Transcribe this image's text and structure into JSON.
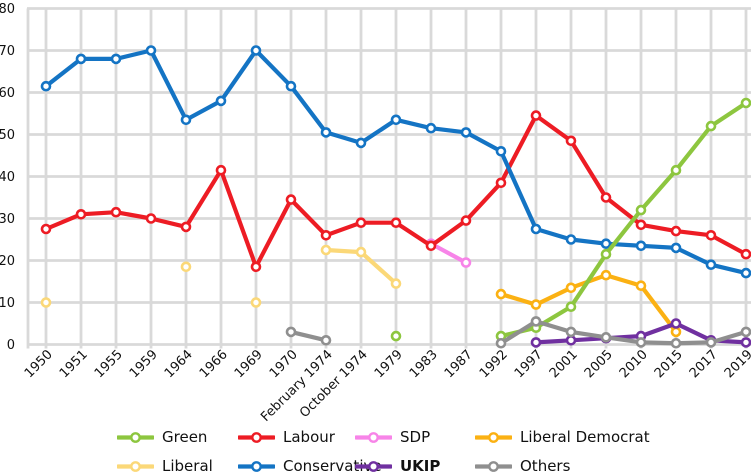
{
  "chart_data": {
    "type": "line",
    "title": "",
    "xlabel": "",
    "ylabel": "",
    "ylim": [
      0,
      80
    ],
    "yticks": [
      0,
      10,
      20,
      30,
      40,
      50,
      60,
      70,
      80
    ],
    "grid": true,
    "legend_position": "bottom",
    "x_categories": [
      "1950",
      "1951",
      "1955",
      "1959",
      "1964",
      "1966",
      "1969",
      "1970",
      "February 1974",
      "October 1974",
      "1979",
      "1983",
      "1987",
      "1992",
      "1997",
      "2001",
      "2005",
      "2010",
      "2015",
      "2017",
      "2019"
    ],
    "series": [
      {
        "name": "Green",
        "color": "#8DC63F",
        "values": [
          null,
          null,
          null,
          null,
          null,
          null,
          null,
          null,
          null,
          null,
          2,
          null,
          null,
          2,
          4,
          9,
          21.5,
          32,
          41.5,
          52,
          57.5
        ]
      },
      {
        "name": "Labour",
        "color": "#ED1C24",
        "values": [
          27.5,
          31,
          31.5,
          30,
          28,
          41.5,
          18.5,
          34.5,
          26,
          29,
          29,
          23.5,
          29.5,
          38.5,
          54.5,
          48.5,
          35,
          28.5,
          27,
          26,
          21.5
        ]
      },
      {
        "name": "SDP",
        "color": "#F784E8",
        "values": [
          null,
          null,
          null,
          null,
          null,
          null,
          null,
          null,
          null,
          null,
          null,
          24,
          19.5,
          null,
          null,
          null,
          null,
          null,
          null,
          null,
          null
        ]
      },
      {
        "name": "Liberal Democrat",
        "color": "#FBB113",
        "values": [
          null,
          null,
          null,
          null,
          null,
          null,
          null,
          null,
          null,
          null,
          null,
          null,
          null,
          12,
          9.5,
          13.5,
          16.5,
          14,
          3,
          null,
          null
        ]
      },
      {
        "name": "Liberal",
        "color": "#FBD878",
        "values": [
          10,
          null,
          null,
          null,
          18.5,
          null,
          10,
          null,
          22.5,
          22,
          14.5,
          null,
          null,
          null,
          null,
          null,
          null,
          null,
          null,
          null,
          null
        ]
      },
      {
        "name": "Conservative",
        "color": "#1474C4",
        "values": [
          61.5,
          68,
          68,
          70,
          53.5,
          58,
          70,
          61.5,
          50.5,
          48,
          53.5,
          51.5,
          50.5,
          46,
          27.5,
          25,
          24,
          23.5,
          23,
          19,
          17
        ]
      },
      {
        "name": "UKIP",
        "color": "#7030A0",
        "bold": true,
        "values": [
          null,
          null,
          null,
          null,
          null,
          null,
          null,
          null,
          null,
          null,
          null,
          null,
          null,
          null,
          0.5,
          1,
          1.5,
          2,
          5,
          1,
          0.5
        ]
      },
      {
        "name": "Others",
        "color": "#8F8F8F",
        "values": [
          null,
          null,
          null,
          null,
          null,
          null,
          null,
          3,
          1,
          null,
          null,
          null,
          null,
          0.3,
          5.5,
          3,
          1.7,
          0.5,
          0.3,
          0.5,
          3
        ]
      }
    ],
    "draw_order": [
      "SDP",
      "Liberal",
      "Liberal Democrat",
      "Labour",
      "Conservative",
      "Green",
      "UKIP",
      "Others"
    ],
    "grid_color": "#D9D9D9"
  }
}
